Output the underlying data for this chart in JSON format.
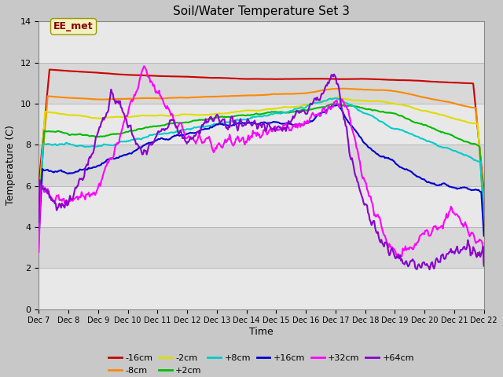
{
  "title": "Soil/Water Temperature Set 3",
  "xlabel": "Time",
  "ylabel": "Temperature (C)",
  "ylim": [
    0,
    14
  ],
  "yticks": [
    0,
    2,
    4,
    6,
    8,
    10,
    12,
    14
  ],
  "x_labels": [
    "Dec 7",
    "Dec 8",
    "Dec 9",
    "Dec 10",
    "Dec 11",
    "Dec 12",
    "Dec 13",
    "Dec 14",
    "Dec 15",
    "Dec 16",
    "Dec 17",
    "Dec 18",
    "Dec 19",
    "Dec 20",
    "Dec 21",
    "Dec 22"
  ],
  "annotation_text": "EE_met",
  "series": {
    "-16cm": {
      "color": "#cc0000",
      "lw": 1.5
    },
    "-8cm": {
      "color": "#ff8800",
      "lw": 1.5
    },
    "-2cm": {
      "color": "#dddd00",
      "lw": 1.5
    },
    "+2cm": {
      "color": "#00bb00",
      "lw": 1.5
    },
    "+8cm": {
      "color": "#00cccc",
      "lw": 1.5
    },
    "+16cm": {
      "color": "#0000cc",
      "lw": 1.5
    },
    "+32cm": {
      "color": "#ff00ff",
      "lw": 1.5
    },
    "+64cm": {
      "color": "#8800cc",
      "lw": 1.5
    }
  }
}
